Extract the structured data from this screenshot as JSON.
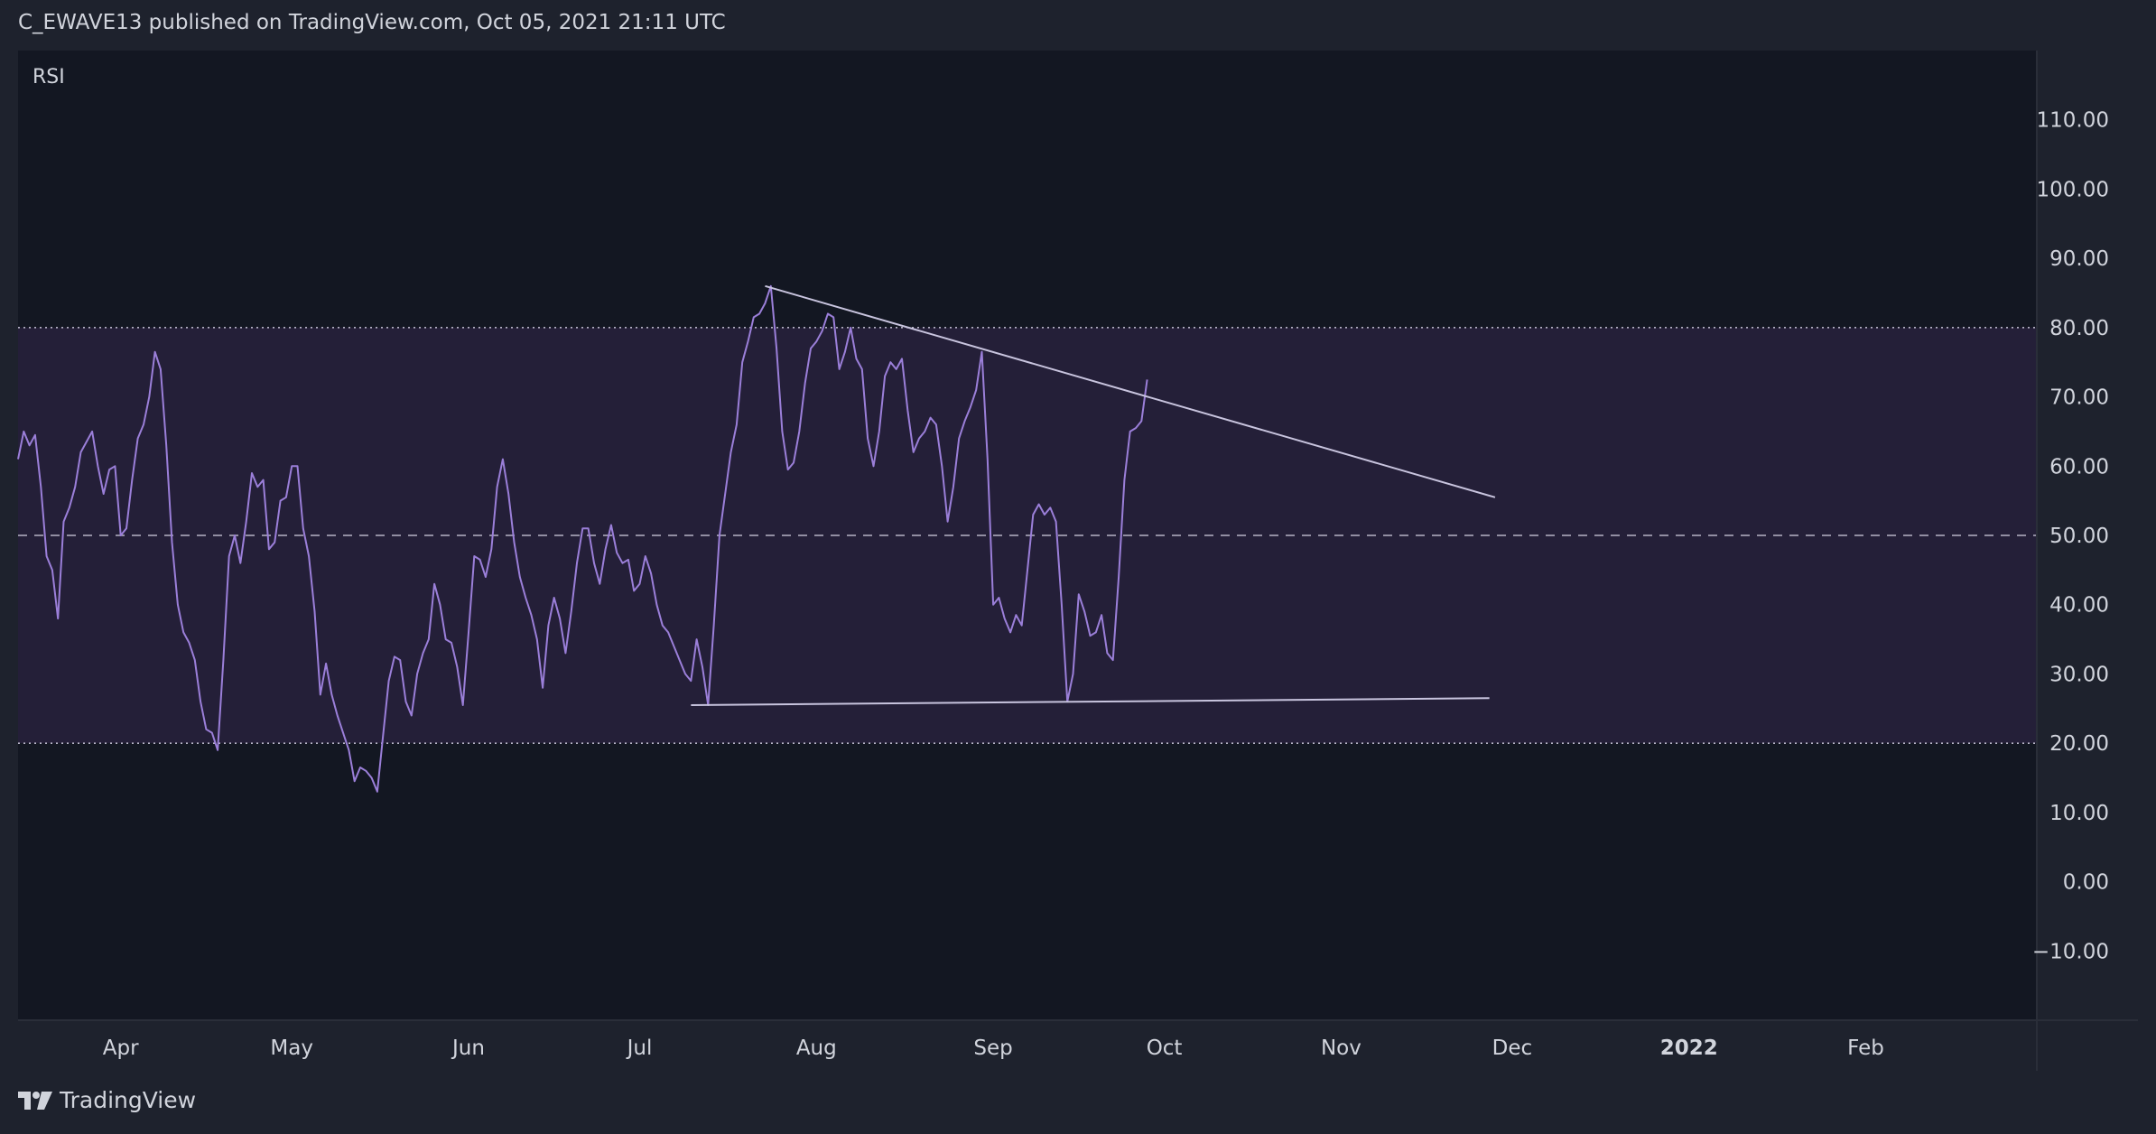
{
  "header": {
    "published_text": "C_EWAVE13 published on TradingView.com, Oct 05, 2021 21:11 UTC"
  },
  "brand": {
    "icon": "tradingview-logo-icon",
    "name": "TradingView"
  },
  "colors": {
    "background": "#131722",
    "frame": "#1e222d",
    "rsi_line": "#9b7fd9",
    "band_fill": "#241f38",
    "trendline": "#c8c4de",
    "text": "#d1d4dc"
  },
  "chart_data": {
    "type": "line",
    "title": "RSI",
    "xlabel": "",
    "ylabel": "",
    "ylim": [
      -20,
      120
    ],
    "y_ticks": [
      "110.00",
      "100.00",
      "90.00",
      "80.00",
      "70.00",
      "60.00",
      "50.00",
      "40.00",
      "30.00",
      "20.00",
      "10.00",
      "0.00",
      "−10.00"
    ],
    "y_tick_values": [
      110,
      100,
      90,
      80,
      70,
      60,
      50,
      40,
      30,
      20,
      10,
      0,
      -10
    ],
    "x_range": [
      "2021-03-14",
      "2022-03-03"
    ],
    "x_ticks": [
      {
        "label": "Apr",
        "date": "2021-04-01",
        "bold": false
      },
      {
        "label": "May",
        "date": "2021-05-01",
        "bold": false
      },
      {
        "label": "Jun",
        "date": "2021-06-01",
        "bold": false
      },
      {
        "label": "Jul",
        "date": "2021-07-01",
        "bold": false
      },
      {
        "label": "Aug",
        "date": "2021-08-01",
        "bold": false
      },
      {
        "label": "Sep",
        "date": "2021-09-01",
        "bold": false
      },
      {
        "label": "Oct",
        "date": "2021-10-01",
        "bold": false
      },
      {
        "label": "Nov",
        "date": "2021-11-01",
        "bold": false
      },
      {
        "label": "Dec",
        "date": "2021-12-01",
        "bold": false
      },
      {
        "label": "2022",
        "date": "2022-01-01",
        "bold": true
      },
      {
        "label": "Feb",
        "date": "2022-02-01",
        "bold": false
      }
    ],
    "bands": {
      "upper": 80,
      "middle": 50,
      "lower": 20
    },
    "grid": false,
    "series": [
      {
        "values": [
          [
            "2021-03-14",
            61
          ],
          [
            "2021-03-15",
            65
          ],
          [
            "2021-03-16",
            63
          ],
          [
            "2021-03-17",
            64.5
          ],
          [
            "2021-03-18",
            57
          ],
          [
            "2021-03-19",
            47
          ],
          [
            "2021-03-20",
            45
          ],
          [
            "2021-03-21",
            38
          ],
          [
            "2021-03-22",
            52
          ],
          [
            "2021-03-23",
            54
          ],
          [
            "2021-03-24",
            57
          ],
          [
            "2021-03-25",
            62
          ],
          [
            "2021-03-26",
            63.5
          ],
          [
            "2021-03-27",
            65
          ],
          [
            "2021-03-28",
            60
          ],
          [
            "2021-03-29",
            56
          ],
          [
            "2021-03-30",
            59.5
          ],
          [
            "2021-03-31",
            60
          ],
          [
            "2021-04-01",
            50
          ],
          [
            "2021-04-02",
            51
          ],
          [
            "2021-04-03",
            58
          ],
          [
            "2021-04-04",
            64
          ],
          [
            "2021-04-05",
            66
          ],
          [
            "2021-04-06",
            70
          ],
          [
            "2021-04-07",
            76.5
          ],
          [
            "2021-04-08",
            74
          ],
          [
            "2021-04-09",
            63
          ],
          [
            "2021-04-10",
            49
          ],
          [
            "2021-04-11",
            40
          ],
          [
            "2021-04-12",
            36
          ],
          [
            "2021-04-13",
            34.5
          ],
          [
            "2021-04-14",
            32
          ],
          [
            "2021-04-15",
            26
          ],
          [
            "2021-04-16",
            22
          ],
          [
            "2021-04-17",
            21.5
          ],
          [
            "2021-04-18",
            19
          ],
          [
            "2021-04-19",
            32
          ],
          [
            "2021-04-20",
            47
          ],
          [
            "2021-04-21",
            50
          ],
          [
            "2021-04-22",
            46
          ],
          [
            "2021-04-23",
            52
          ],
          [
            "2021-04-24",
            59
          ],
          [
            "2021-04-25",
            57
          ],
          [
            "2021-04-26",
            58
          ],
          [
            "2021-04-27",
            48
          ],
          [
            "2021-04-28",
            49
          ],
          [
            "2021-04-29",
            55
          ],
          [
            "2021-04-30",
            55.5
          ],
          [
            "2021-05-01",
            60
          ],
          [
            "2021-05-02",
            60
          ],
          [
            "2021-05-03",
            51
          ],
          [
            "2021-05-04",
            47
          ],
          [
            "2021-05-05",
            39
          ],
          [
            "2021-05-06",
            27
          ],
          [
            "2021-05-07",
            31.5
          ],
          [
            "2021-05-08",
            27
          ],
          [
            "2021-05-09",
            24
          ],
          [
            "2021-05-10",
            21.5
          ],
          [
            "2021-05-11",
            19
          ],
          [
            "2021-05-12",
            14.5
          ],
          [
            "2021-05-13",
            16.5
          ],
          [
            "2021-05-14",
            16
          ],
          [
            "2021-05-15",
            15
          ],
          [
            "2021-05-16",
            13
          ],
          [
            "2021-05-17",
            21
          ],
          [
            "2021-05-18",
            29
          ],
          [
            "2021-05-19",
            32.5
          ],
          [
            "2021-05-20",
            32
          ],
          [
            "2021-05-21",
            26
          ],
          [
            "2021-05-22",
            24
          ],
          [
            "2021-05-23",
            30
          ],
          [
            "2021-05-24",
            33
          ],
          [
            "2021-05-25",
            35
          ],
          [
            "2021-05-26",
            43
          ],
          [
            "2021-05-27",
            40
          ],
          [
            "2021-05-28",
            35
          ],
          [
            "2021-05-29",
            34.5
          ],
          [
            "2021-05-30",
            31
          ],
          [
            "2021-05-31",
            25.5
          ],
          [
            "2021-06-01",
            36
          ],
          [
            "2021-06-02",
            47
          ],
          [
            "2021-06-03",
            46.5
          ],
          [
            "2021-06-04",
            44
          ],
          [
            "2021-06-05",
            48
          ],
          [
            "2021-06-06",
            57
          ],
          [
            "2021-06-07",
            61
          ],
          [
            "2021-06-08",
            56
          ],
          [
            "2021-06-09",
            49
          ],
          [
            "2021-06-10",
            44
          ],
          [
            "2021-06-11",
            41
          ],
          [
            "2021-06-12",
            38.5
          ],
          [
            "2021-06-13",
            35
          ],
          [
            "2021-06-14",
            28
          ],
          [
            "2021-06-15",
            37
          ],
          [
            "2021-06-16",
            41
          ],
          [
            "2021-06-17",
            38
          ],
          [
            "2021-06-18",
            33
          ],
          [
            "2021-06-19",
            39
          ],
          [
            "2021-06-20",
            46
          ],
          [
            "2021-06-21",
            51
          ],
          [
            "2021-06-22",
            51
          ],
          [
            "2021-06-23",
            46
          ],
          [
            "2021-06-24",
            43
          ],
          [
            "2021-06-25",
            48
          ],
          [
            "2021-06-26",
            51.5
          ],
          [
            "2021-06-27",
            47.5
          ],
          [
            "2021-06-28",
            46
          ],
          [
            "2021-06-29",
            46.5
          ],
          [
            "2021-06-30",
            42
          ],
          [
            "2021-07-01",
            43
          ],
          [
            "2021-07-02",
            47
          ],
          [
            "2021-07-03",
            44.5
          ],
          [
            "2021-07-04",
            40
          ],
          [
            "2021-07-05",
            37
          ],
          [
            "2021-07-06",
            36
          ],
          [
            "2021-07-07",
            34
          ],
          [
            "2021-07-08",
            32
          ],
          [
            "2021-07-09",
            30
          ],
          [
            "2021-07-10",
            29
          ],
          [
            "2021-07-11",
            35
          ],
          [
            "2021-07-12",
            31
          ],
          [
            "2021-07-13",
            25.5
          ],
          [
            "2021-07-14",
            37
          ],
          [
            "2021-07-15",
            50
          ],
          [
            "2021-07-16",
            56
          ],
          [
            "2021-07-17",
            62
          ],
          [
            "2021-07-18",
            66
          ],
          [
            "2021-07-19",
            75
          ],
          [
            "2021-07-20",
            78
          ],
          [
            "2021-07-21",
            81.5
          ],
          [
            "2021-07-22",
            82
          ],
          [
            "2021-07-23",
            83.5
          ],
          [
            "2021-07-24",
            86
          ],
          [
            "2021-07-25",
            77
          ],
          [
            "2021-07-26",
            65
          ],
          [
            "2021-07-27",
            59.5
          ],
          [
            "2021-07-28",
            60.5
          ],
          [
            "2021-07-29",
            65
          ],
          [
            "2021-07-30",
            72
          ],
          [
            "2021-07-31",
            77
          ],
          [
            "2021-08-01",
            78
          ],
          [
            "2021-08-02",
            79.5
          ],
          [
            "2021-08-03",
            82
          ],
          [
            "2021-08-04",
            81.5
          ],
          [
            "2021-08-05",
            74
          ],
          [
            "2021-08-06",
            76.5
          ],
          [
            "2021-08-07",
            80
          ],
          [
            "2021-08-08",
            75.5
          ],
          [
            "2021-08-09",
            74
          ],
          [
            "2021-08-10",
            64
          ],
          [
            "2021-08-11",
            60
          ],
          [
            "2021-08-12",
            65
          ],
          [
            "2021-08-13",
            73
          ],
          [
            "2021-08-14",
            75
          ],
          [
            "2021-08-15",
            74
          ],
          [
            "2021-08-16",
            75.5
          ],
          [
            "2021-08-17",
            68
          ],
          [
            "2021-08-18",
            62
          ],
          [
            "2021-08-19",
            64
          ],
          [
            "2021-08-20",
            65
          ],
          [
            "2021-08-21",
            67
          ],
          [
            "2021-08-22",
            66
          ],
          [
            "2021-08-23",
            60
          ],
          [
            "2021-08-24",
            52
          ],
          [
            "2021-08-25",
            57
          ],
          [
            "2021-08-26",
            64
          ],
          [
            "2021-08-27",
            66.5
          ],
          [
            "2021-08-28",
            68.5
          ],
          [
            "2021-08-29",
            71
          ],
          [
            "2021-08-30",
            76.5
          ],
          [
            "2021-08-31",
            61
          ],
          [
            "2021-09-01",
            40
          ],
          [
            "2021-09-02",
            41
          ],
          [
            "2021-09-03",
            38
          ],
          [
            "2021-09-04",
            36
          ],
          [
            "2021-09-05",
            38.5
          ],
          [
            "2021-09-06",
            37
          ],
          [
            "2021-09-07",
            45
          ],
          [
            "2021-09-08",
            53
          ],
          [
            "2021-09-09",
            54.5
          ],
          [
            "2021-09-10",
            53
          ],
          [
            "2021-09-11",
            54
          ],
          [
            "2021-09-12",
            52
          ],
          [
            "2021-09-13",
            40
          ],
          [
            "2021-09-14",
            26
          ],
          [
            "2021-09-15",
            30
          ],
          [
            "2021-09-16",
            41.5
          ],
          [
            "2021-09-17",
            39
          ],
          [
            "2021-09-18",
            35.5
          ],
          [
            "2021-09-19",
            36
          ],
          [
            "2021-09-20",
            38.5
          ],
          [
            "2021-09-21",
            33
          ],
          [
            "2021-09-22",
            32
          ],
          [
            "2021-09-23",
            44
          ],
          [
            "2021-09-24",
            58
          ],
          [
            "2021-09-25",
            65
          ],
          [
            "2021-09-26",
            65.5
          ],
          [
            "2021-09-27",
            66.5
          ],
          [
            "2021-09-28",
            72.5
          ]
        ]
      }
    ],
    "trendlines": [
      {
        "from": [
          "2021-07-23",
          86
        ],
        "to": [
          "2021-11-28",
          55.5
        ]
      },
      {
        "from": [
          "2021-07-10",
          25.5
        ],
        "to": [
          "2021-11-27",
          26.5
        ]
      }
    ]
  }
}
